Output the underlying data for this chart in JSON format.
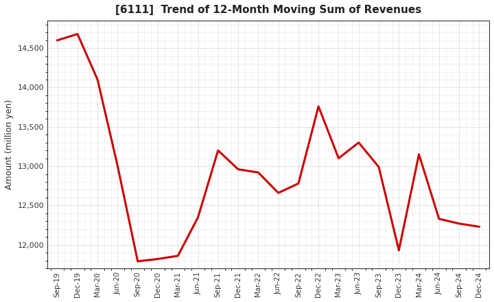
{
  "title": "[6111]  Trend of 12-Month Moving Sum of Revenues",
  "ylabel": "Amount (million yen)",
  "line_color": "#cc0000",
  "line_width": 2.2,
  "background_color": "#ffffff",
  "grid_color": "#999999",
  "ylim": [
    11700,
    14850
  ],
  "yticks": [
    12000,
    12500,
    13000,
    13500,
    14000,
    14500
  ],
  "x_labels": [
    "Sep-19",
    "Dec-19",
    "Mar-20",
    "Jun-20",
    "Sep-20",
    "Dec-20",
    "Mar-21",
    "Jun-21",
    "Sep-21",
    "Dec-21",
    "Mar-22",
    "Jun-22",
    "Sep-22",
    "Dec-22",
    "Mar-23",
    "Jun-23",
    "Sep-23",
    "Dec-23",
    "Mar-24",
    "Jun-24",
    "Sep-24",
    "Dec-24"
  ],
  "values": [
    14600,
    14680,
    14100,
    13000,
    11790,
    11820,
    11860,
    12350,
    13200,
    12960,
    12920,
    12660,
    12780,
    13760,
    13100,
    13300,
    12990,
    11930,
    13150,
    12330,
    12270,
    12230
  ]
}
